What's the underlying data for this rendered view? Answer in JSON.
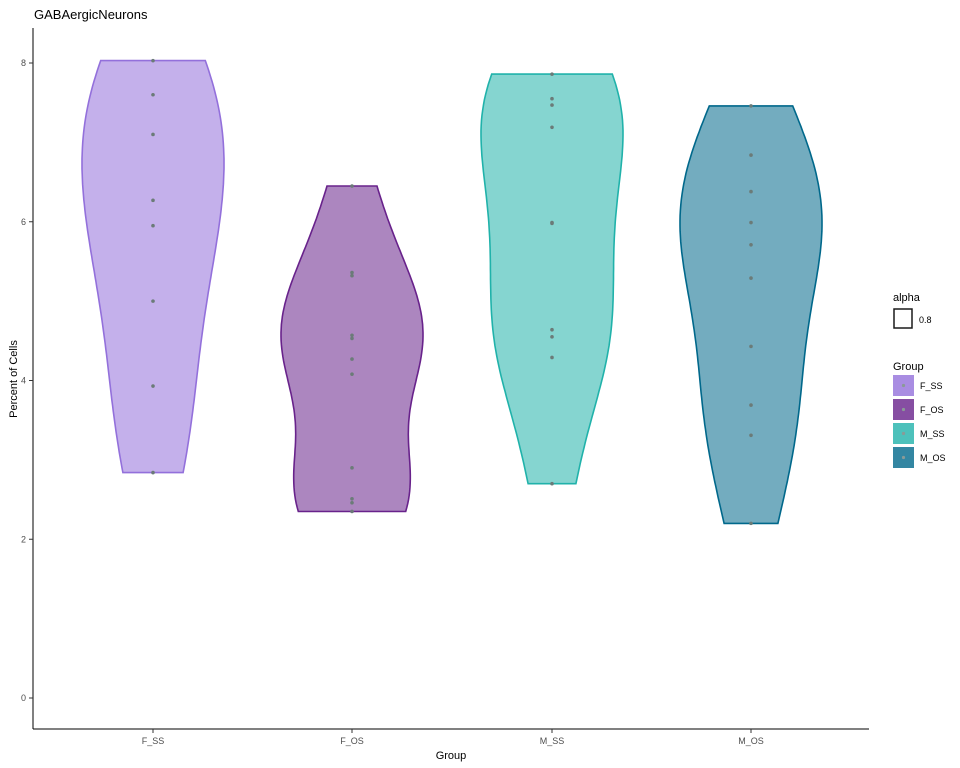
{
  "chart_data": {
    "type": "violin",
    "title": "GABAergicNeurons",
    "xlabel": "Group",
    "ylabel": "Percent of Cells",
    "ylim": [
      -0.4,
      8.45
    ],
    "yticks": [
      0,
      2,
      4,
      6,
      8
    ],
    "grid": false,
    "categories": [
      "F_SS",
      "F_OS",
      "M_SS",
      "M_OS"
    ],
    "series": [
      {
        "name": "F_SS",
        "color": "#9370DB",
        "points": [
          8.03,
          7.6,
          7.1,
          6.27,
          5.95,
          5.0,
          3.93,
          2.84
        ]
      },
      {
        "name": "F_OS",
        "color": "#68228B",
        "points": [
          6.45,
          5.36,
          5.32,
          4.57,
          4.53,
          4.27,
          4.08,
          2.9,
          2.51,
          2.46,
          2.35
        ]
      },
      {
        "name": "M_SS",
        "color": "#20B2AA",
        "points": [
          7.86,
          7.55,
          7.47,
          7.19,
          5.99,
          5.98,
          4.64,
          4.55,
          4.29,
          2.7
        ]
      },
      {
        "name": "M_OS",
        "color": "#00688B",
        "points": [
          7.46,
          6.84,
          6.38,
          5.99,
          5.71,
          5.29,
          4.43,
          3.69,
          3.31,
          2.2
        ]
      }
    ],
    "legend": {
      "position": "right",
      "alpha_title": "alpha",
      "alpha_value": "0.8",
      "group_title": "Group"
    }
  }
}
